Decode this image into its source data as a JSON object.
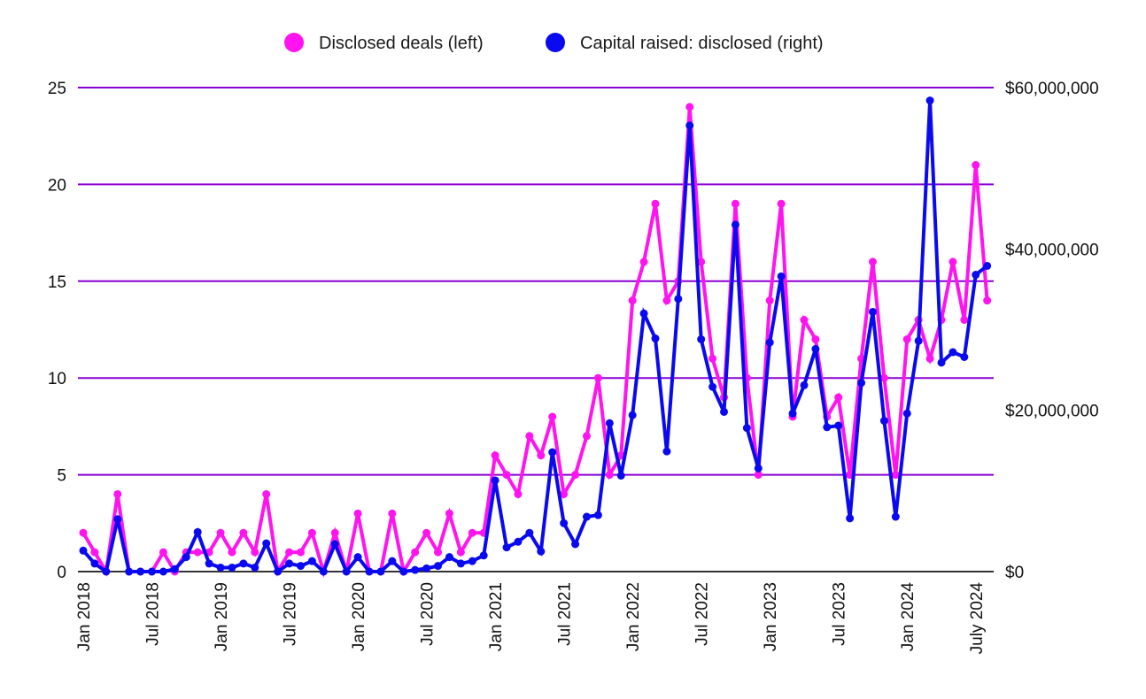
{
  "chart_data": {
    "type": "line",
    "title": "",
    "legend_position": "top-center",
    "colors": {
      "deals": "#ff14f0",
      "capital": "#0a0af0",
      "grid": "#8a00d4",
      "baseline": "#333333"
    },
    "legend": [
      {
        "key": "deals",
        "label": "Disclosed deals (left)"
      },
      {
        "key": "capital",
        "label": "Capital raised: disclosed (right)"
      }
    ],
    "left_axis": {
      "ylim": [
        0,
        25
      ],
      "ticks": [
        "0",
        "5",
        "10",
        "15",
        "20",
        "25"
      ],
      "tick_values": [
        0,
        5,
        10,
        15,
        20,
        25
      ]
    },
    "right_axis": {
      "ylim": [
        0,
        60000000
      ],
      "ticks": [
        "$0",
        "$20,000,000",
        "$40,000,000",
        "$60,000,000"
      ],
      "tick_values": [
        0,
        20000000,
        40000000,
        60000000
      ]
    },
    "x_start": "Jan 2018",
    "x_tick_labels": [
      {
        "label": "Jan 2018",
        "index": 0
      },
      {
        "label": "Jul 2018",
        "index": 6
      },
      {
        "label": "Jan 2019",
        "index": 12
      },
      {
        "label": "Jul 2019",
        "index": 18
      },
      {
        "label": "Jan 2020",
        "index": 24
      },
      {
        "label": "Jul 2020",
        "index": 30
      },
      {
        "label": "Jan 2021",
        "index": 36
      },
      {
        "label": "Jul 2021",
        "index": 42
      },
      {
        "label": "Jan 2022",
        "index": 48
      },
      {
        "label": "Jul 2022",
        "index": 54
      },
      {
        "label": "Jan 2023",
        "index": 60
      },
      {
        "label": "Jul 2023",
        "index": 66
      },
      {
        "label": "Jan 2024",
        "index": 72
      },
      {
        "label": "July 2024",
        "index": 78
      }
    ],
    "series": [
      {
        "name": "Disclosed deals (left)",
        "key": "deals",
        "axis": "left",
        "values": [
          2,
          1,
          0,
          4,
          0,
          0,
          0,
          1,
          0,
          1,
          1,
          1,
          2,
          1,
          2,
          1,
          4,
          0,
          1,
          1,
          2,
          0,
          2,
          0,
          3,
          0,
          0,
          3,
          0,
          1,
          2,
          1,
          3,
          1,
          2,
          2,
          6,
          5,
          4,
          7,
          6,
          8,
          4,
          5,
          7,
          10,
          5,
          6,
          14,
          16,
          19,
          14,
          15,
          24,
          16,
          11,
          9,
          19,
          10,
          5,
          14,
          19,
          8,
          13,
          12,
          8,
          9,
          5,
          11,
          16,
          10,
          5,
          12,
          13,
          11,
          13,
          16,
          13,
          21,
          14
        ]
      },
      {
        "name": "Capital raised: disclosed (right)",
        "key": "capital",
        "axis": "right",
        "values_millions_usd": [
          2.6,
          1.0,
          0,
          6.5,
          0,
          0,
          0,
          0,
          0.3,
          1.8,
          4.9,
          1.0,
          0.5,
          0.5,
          1.0,
          0.5,
          3.5,
          0,
          1.0,
          0.7,
          1.3,
          0,
          3.4,
          0,
          1.8,
          0,
          0,
          1.3,
          0,
          0.2,
          0.4,
          0.7,
          1.8,
          1.0,
          1.3,
          2.0,
          11.3,
          3.0,
          3.7,
          4.8,
          2.5,
          14.8,
          6.0,
          3.4,
          6.8,
          7.0,
          18.4,
          11.9,
          19.4,
          32.0,
          28.9,
          14.9,
          33.8,
          55.3,
          28.8,
          22.9,
          19.8,
          43.0,
          17.8,
          12.8,
          28.4,
          36.6,
          19.6,
          23.1,
          27.6,
          17.9,
          18.1,
          6.6,
          23.4,
          32.2,
          18.7,
          6.8,
          19.6,
          28.6,
          58.4,
          25.9,
          27.2,
          26.6,
          36.8,
          37.9
        ]
      }
    ]
  }
}
